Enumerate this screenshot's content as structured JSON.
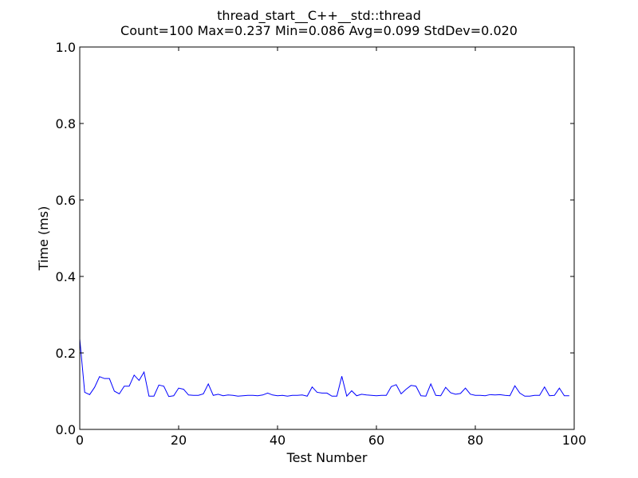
{
  "chart_data": {
    "type": "line",
    "title": "thread_start__C++__std::thread",
    "subtitle": "Count=100 Max=0.237 Min=0.086 Avg=0.099 StdDev=0.020",
    "xlabel": "Test Number",
    "ylabel": "Time (ms)",
    "xlim": [
      0,
      100
    ],
    "ylim": [
      0.0,
      1.0
    ],
    "xticks": [
      0,
      20,
      40,
      60,
      80,
      100
    ],
    "xtick_labels": [
      "0",
      "20",
      "40",
      "60",
      "80",
      "100"
    ],
    "yticks": [
      0.0,
      0.2,
      0.4,
      0.6,
      0.8,
      1.0
    ],
    "ytick_labels": [
      "0.0",
      "0.2",
      "0.4",
      "0.6",
      "0.8",
      "1.0"
    ],
    "grid": false,
    "line_color": "#0000ff",
    "series": [
      {
        "x": [
          0,
          1,
          2,
          3,
          4,
          5,
          6,
          7,
          8,
          9,
          10,
          11,
          12,
          13,
          14,
          15,
          16,
          17,
          18,
          19,
          20,
          21,
          22,
          23,
          24,
          25,
          26,
          27,
          28,
          29,
          30,
          31,
          32,
          33,
          34,
          35,
          36,
          37,
          38,
          39,
          40,
          41,
          42,
          43,
          44,
          45,
          46,
          47,
          48,
          49,
          50,
          51,
          52,
          53,
          54,
          55,
          56,
          57,
          58,
          59,
          60,
          61,
          62,
          63,
          64,
          65,
          66,
          67,
          68,
          69,
          70,
          71,
          72,
          73,
          74,
          75,
          76,
          77,
          78,
          79,
          80,
          81,
          82,
          83,
          84,
          85,
          86,
          87,
          88,
          89,
          90,
          91,
          92,
          93,
          94,
          95,
          96,
          97,
          98,
          99
        ],
        "values": [
          0.237,
          0.097,
          0.091,
          0.11,
          0.138,
          0.133,
          0.133,
          0.1,
          0.093,
          0.113,
          0.113,
          0.142,
          0.128,
          0.15,
          0.087,
          0.087,
          0.116,
          0.113,
          0.086,
          0.088,
          0.108,
          0.105,
          0.09,
          0.089,
          0.089,
          0.093,
          0.119,
          0.089,
          0.092,
          0.088,
          0.09,
          0.089,
          0.087,
          0.088,
          0.089,
          0.089,
          0.088,
          0.09,
          0.095,
          0.09,
          0.088,
          0.089,
          0.087,
          0.089,
          0.089,
          0.09,
          0.087,
          0.111,
          0.097,
          0.095,
          0.095,
          0.087,
          0.087,
          0.139,
          0.087,
          0.101,
          0.088,
          0.092,
          0.09,
          0.089,
          0.088,
          0.089,
          0.089,
          0.112,
          0.117,
          0.093,
          0.105,
          0.115,
          0.113,
          0.088,
          0.087,
          0.119,
          0.089,
          0.088,
          0.11,
          0.096,
          0.092,
          0.094,
          0.108,
          0.092,
          0.089,
          0.089,
          0.088,
          0.091,
          0.09,
          0.091,
          0.089,
          0.088,
          0.114,
          0.095,
          0.087,
          0.087,
          0.089,
          0.089,
          0.111,
          0.088,
          0.089,
          0.108,
          0.088,
          0.088
        ]
      }
    ]
  }
}
